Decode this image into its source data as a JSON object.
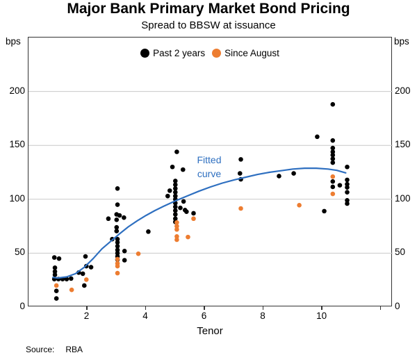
{
  "title": "Major Bank Primary Market Bond Pricing",
  "subtitle": "Spread to BBSW at issuance",
  "source": {
    "label": "Source:",
    "value": "RBA"
  },
  "axes": {
    "unit": "bps"
  },
  "chart_data": {
    "type": "scatter",
    "title": "Major Bank Primary Market Bond Pricing",
    "subtitle": "Spread to BBSW at issuance",
    "xlabel": "Tenor",
    "ylabel": "bps",
    "xlim": [
      0,
      12.4
    ],
    "ylim": [
      0,
      250
    ],
    "x_ticks": [
      2,
      4,
      6,
      8,
      10,
      12
    ],
    "x_tick_labels": [
      "2",
      "4",
      "6",
      "8",
      "10",
      ""
    ],
    "y_ticks": [
      0,
      50,
      100,
      150,
      200
    ],
    "gridlines": [
      50,
      100,
      150,
      200
    ],
    "grid": true,
    "legend_position": "top-center-inside",
    "annotations": [
      {
        "text": "Fitted curve",
        "x": 6.2,
        "y": 132,
        "color": "#2E6FC0"
      }
    ],
    "series": [
      {
        "name": "Past 2 years",
        "type": "scatter",
        "color": "#000000",
        "marker": "circle",
        "points": [
          [
            0.88,
            46
          ],
          [
            1.04,
            45
          ],
          [
            0.9,
            36.5
          ],
          [
            0.9,
            33
          ],
          [
            0.9,
            30
          ],
          [
            0.88,
            26
          ],
          [
            1.02,
            26
          ],
          [
            1.16,
            26
          ],
          [
            1.3,
            26
          ],
          [
            1.45,
            26.5
          ],
          [
            0.95,
            15
          ],
          [
            0.95,
            8
          ],
          [
            1.71,
            32
          ],
          [
            1.85,
            31
          ],
          [
            1.94,
            47
          ],
          [
            1.97,
            38
          ],
          [
            2.13,
            37
          ],
          [
            1.9,
            20
          ],
          [
            2.72,
            82
          ],
          [
            2.85,
            63
          ],
          [
            3.03,
            110
          ],
          [
            3.03,
            95
          ],
          [
            3.0,
            86
          ],
          [
            3.1,
            85
          ],
          [
            3.25,
            83
          ],
          [
            3.0,
            81
          ],
          [
            3.0,
            74
          ],
          [
            3.0,
            70.5
          ],
          [
            3.03,
            63
          ],
          [
            3.03,
            60
          ],
          [
            3.03,
            56.5
          ],
          [
            3.03,
            53
          ],
          [
            3.03,
            50
          ],
          [
            3.03,
            47
          ],
          [
            3.03,
            44
          ],
          [
            3.27,
            52
          ],
          [
            3.27,
            43.5
          ],
          [
            4.08,
            70
          ],
          [
            5.05,
            144
          ],
          [
            4.9,
            130
          ],
          [
            5.26,
            127.5
          ],
          [
            5.0,
            117
          ],
          [
            5.0,
            113.5
          ],
          [
            5.0,
            110
          ],
          [
            5.0,
            106.5
          ],
          [
            5.0,
            103
          ],
          [
            5.0,
            100
          ],
          [
            5.0,
            96.5
          ],
          [
            5.0,
            93
          ],
          [
            5.0,
            89.5
          ],
          [
            5.0,
            86
          ],
          [
            5.0,
            82
          ],
          [
            5.0,
            79
          ],
          [
            4.81,
            108
          ],
          [
            4.74,
            103
          ],
          [
            5.28,
            98
          ],
          [
            5.17,
            92
          ],
          [
            5.33,
            90
          ],
          [
            5.38,
            88.5
          ],
          [
            5.62,
            87
          ],
          [
            7.23,
            137
          ],
          [
            7.2,
            124
          ],
          [
            7.23,
            118.5
          ],
          [
            8.53,
            121.5
          ],
          [
            9.03,
            124
          ],
          [
            10.36,
            188
          ],
          [
            9.83,
            158
          ],
          [
            10.36,
            154.5
          ],
          [
            10.36,
            147.5
          ],
          [
            10.36,
            144
          ],
          [
            10.36,
            141
          ],
          [
            10.36,
            137.5
          ],
          [
            10.36,
            134
          ],
          [
            10.36,
            116.5
          ],
          [
            10.36,
            111.5
          ],
          [
            10.6,
            113
          ],
          [
            10.07,
            89
          ],
          [
            10.85,
            130
          ],
          [
            10.85,
            118
          ],
          [
            10.85,
            114
          ],
          [
            10.85,
            111
          ],
          [
            10.85,
            106.5
          ],
          [
            10.85,
            99
          ],
          [
            10.85,
            96
          ]
        ]
      },
      {
        "name": "Since August",
        "type": "scatter",
        "color": "#ED7D31",
        "marker": "circle",
        "points": [
          [
            0.95,
            20
          ],
          [
            1.47,
            16
          ],
          [
            1.97,
            25.5
          ],
          [
            3.03,
            44.5
          ],
          [
            3.03,
            40.5
          ],
          [
            3.03,
            38
          ],
          [
            3.03,
            31.5
          ],
          [
            3.74,
            49.5
          ],
          [
            5.05,
            78.5
          ],
          [
            5.05,
            75
          ],
          [
            5.05,
            72
          ],
          [
            5.05,
            65.5
          ],
          [
            5.05,
            62.5
          ],
          [
            5.43,
            65
          ],
          [
            5.62,
            82
          ],
          [
            7.23,
            91.5
          ],
          [
            9.22,
            94.5
          ],
          [
            10.36,
            121
          ],
          [
            10.36,
            105
          ]
        ]
      },
      {
        "name": "Fitted curve",
        "type": "line",
        "color": "#2E6FC0",
        "points": [
          [
            0.83,
            27.5
          ],
          [
            1.0,
            27
          ],
          [
            1.3,
            28
          ],
          [
            1.6,
            31
          ],
          [
            1.9,
            37
          ],
          [
            2.2,
            45
          ],
          [
            2.5,
            54
          ],
          [
            2.8,
            61
          ],
          [
            3.1,
            68
          ],
          [
            3.4,
            74.5
          ],
          [
            3.7,
            80
          ],
          [
            4.0,
            85
          ],
          [
            4.3,
            89.5
          ],
          [
            4.6,
            93.5
          ],
          [
            5.0,
            98.5
          ],
          [
            5.4,
            103
          ],
          [
            5.8,
            107.5
          ],
          [
            6.2,
            111.5
          ],
          [
            6.6,
            115
          ],
          [
            7.0,
            118
          ],
          [
            7.4,
            120.5
          ],
          [
            7.8,
            123
          ],
          [
            8.2,
            125
          ],
          [
            8.6,
            126.5
          ],
          [
            9.0,
            128
          ],
          [
            9.4,
            128.8
          ],
          [
            9.8,
            128.8
          ],
          [
            10.2,
            128
          ],
          [
            10.5,
            126.8
          ],
          [
            10.8,
            124.5
          ]
        ]
      }
    ]
  }
}
